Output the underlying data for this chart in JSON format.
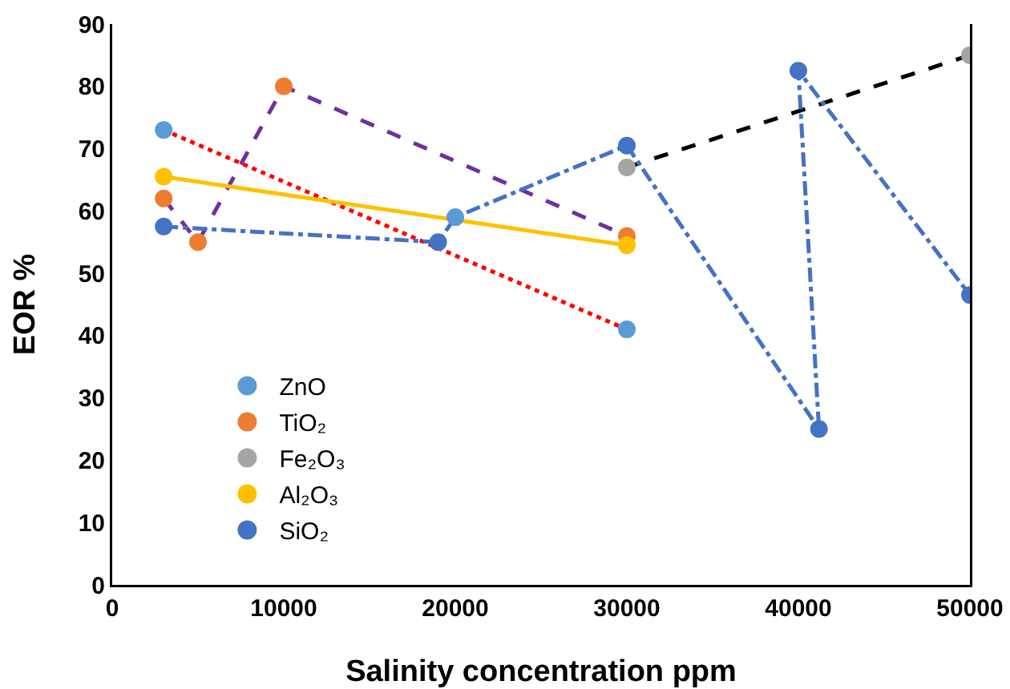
{
  "chart_data": {
    "type": "scatter",
    "xlabel": "Salinity concentration ppm",
    "ylabel": "EOR %",
    "xlim": [
      0,
      50000
    ],
    "xticks": [
      0,
      10000,
      20000,
      30000,
      40000,
      50000
    ],
    "ylim": [
      0,
      90
    ],
    "yticks": [
      0,
      10,
      20,
      30,
      40,
      50,
      60,
      70,
      80,
      90
    ],
    "grid": false,
    "legend": "bottom left",
    "marker": "circle",
    "series": [
      {
        "type": "line",
        "color": "#ff0000",
        "line_style": "dotted",
        "marker": "none",
        "x": [
          3000,
          30000
        ],
        "values": [
          73,
          41
        ]
      },
      {
        "type": "line",
        "color": "#7030a0",
        "line_style": "dashed",
        "marker": "none",
        "x": [
          3000,
          5000,
          10000,
          30000
        ],
        "values": [
          62,
          55,
          80,
          56
        ]
      },
      {
        "type": "line",
        "color": "#ffc000",
        "line_style": "solid",
        "marker": "none",
        "x": [
          3000,
          30000
        ],
        "values": [
          65.5,
          54.5
        ]
      },
      {
        "type": "line",
        "color": "#000000",
        "line_style": "dashed",
        "marker": "none",
        "x": [
          30000,
          50000
        ],
        "values": [
          67,
          85
        ]
      },
      {
        "type": "line",
        "color": "#4472c4",
        "line_style": "dashdot",
        "marker": "none",
        "x": [
          3000,
          19000,
          20000,
          30000,
          41200,
          40000,
          50000
        ],
        "values": [
          57.5,
          55,
          59,
          70.5,
          25,
          82.5,
          46.5
        ]
      },
      {
        "name": "ZnO",
        "color": "#5b9bd5",
        "x": [
          3000,
          20000,
          30000
        ],
        "values": [
          73,
          59,
          41
        ]
      },
      {
        "name": "TiO₂",
        "color": "#ed7d31",
        "x": [
          3000,
          5000,
          10000,
          30000
        ],
        "values": [
          62,
          55,
          80,
          56
        ]
      },
      {
        "name": "Fe₂O₃",
        "color": "#a5a5a5",
        "x": [
          30000,
          50000
        ],
        "values": [
          67,
          85
        ]
      },
      {
        "name": "Al₂O₃",
        "color": "#ffc000",
        "x": [
          3000,
          30000
        ],
        "values": [
          65.5,
          54.5
        ]
      },
      {
        "name": "SiO₂",
        "color": "#4472c4",
        "x": [
          3000,
          19000,
          30000,
          40000,
          41200,
          50000
        ],
        "values": [
          57.5,
          55,
          70.5,
          82.5,
          25,
          46.5
        ]
      }
    ]
  }
}
